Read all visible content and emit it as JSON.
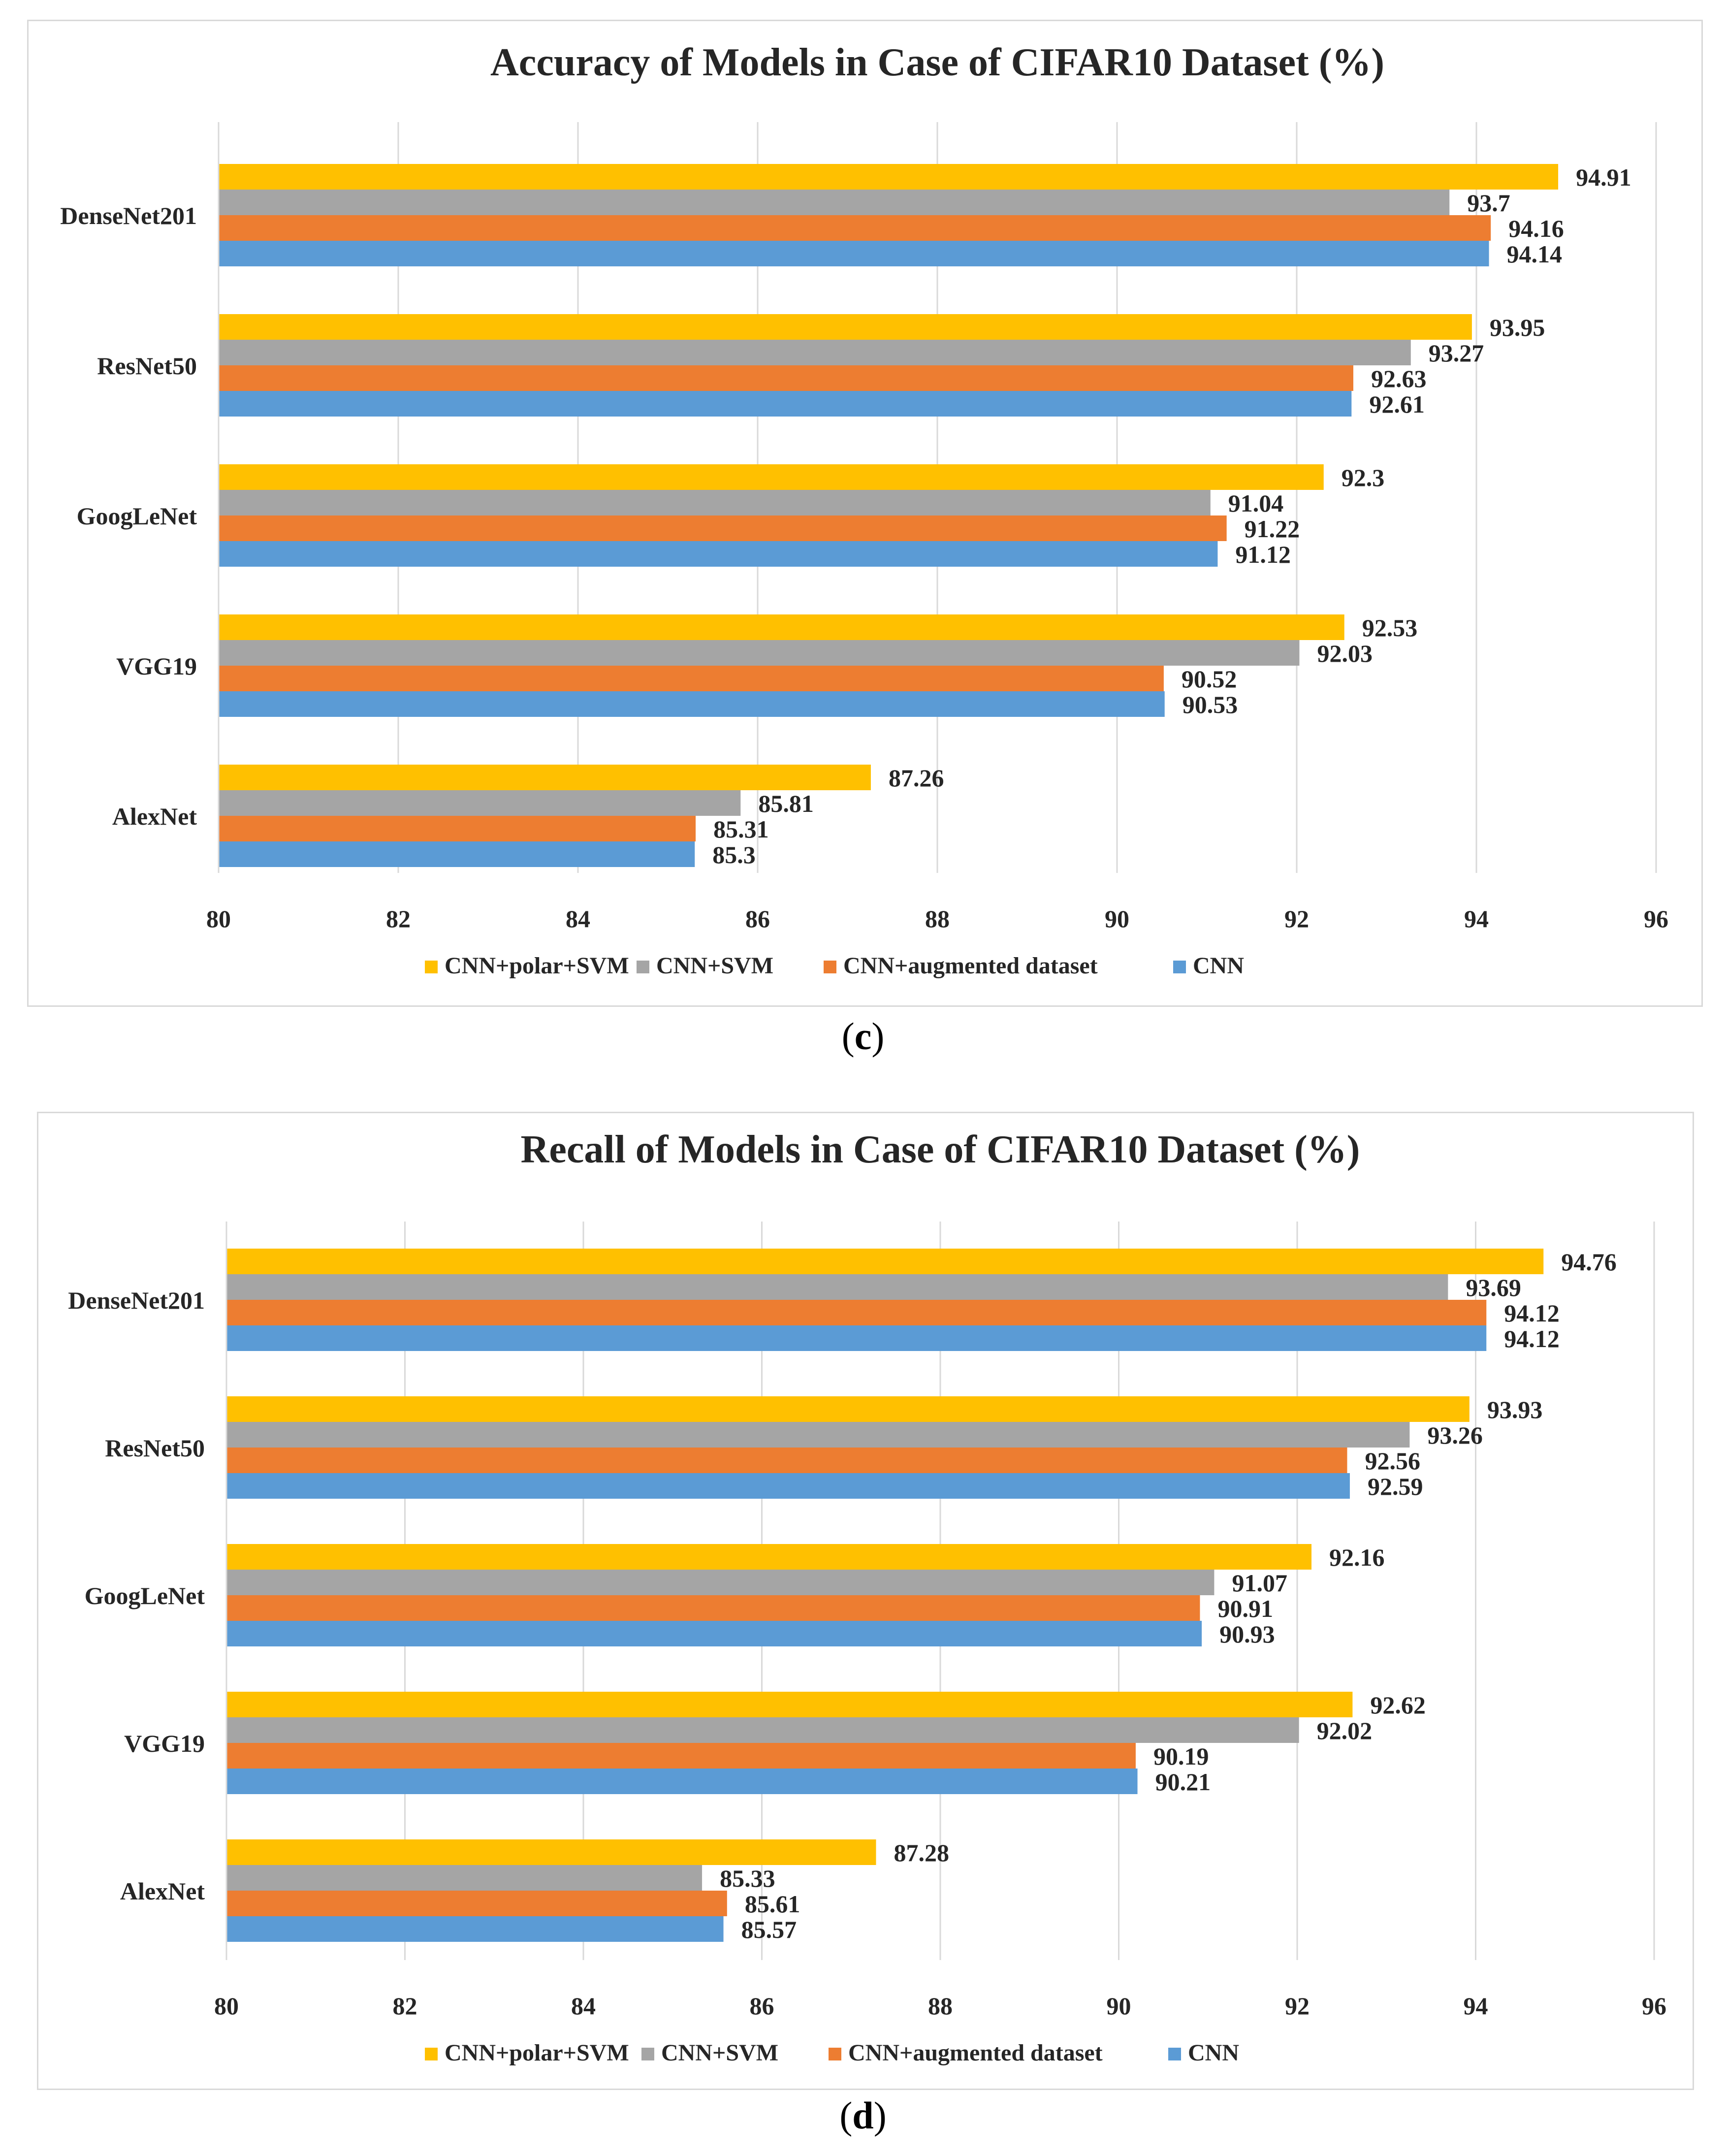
{
  "chart_data": [
    {
      "type": "bar",
      "orientation": "horizontal",
      "title": "Accuracy of Models in Case of CIFAR10 Dataset (%)",
      "caption": "c",
      "categories": [
        "DenseNet201",
        "ResNet50",
        "GoogLeNet",
        "VGG19",
        "AlexNet"
      ],
      "series": [
        {
          "name": "CNN+polar+SVM",
          "color": "#ffc000",
          "values": [
            94.91,
            93.95,
            92.3,
            92.53,
            87.26
          ]
        },
        {
          "name": "CNN+SVM",
          "color": "#a5a5a5",
          "values": [
            93.7,
            93.27,
            91.04,
            92.03,
            85.81
          ]
        },
        {
          "name": "CNN+augmented dataset",
          "color": "#ed7d31",
          "values": [
            94.16,
            92.63,
            91.22,
            90.52,
            85.31
          ]
        },
        {
          "name": "CNN",
          "color": "#5b9bd5",
          "values": [
            94.14,
            92.61,
            91.12,
            90.53,
            85.3
          ]
        }
      ],
      "xlim": [
        80,
        96
      ],
      "xticks": [
        80,
        82,
        84,
        86,
        88,
        90,
        92,
        94,
        96
      ],
      "legend": "bottom",
      "grid": true
    },
    {
      "type": "bar",
      "orientation": "horizontal",
      "title": "Recall of Models in Case of  CIFAR10 Dataset (%)",
      "caption": "d",
      "categories": [
        "DenseNet201",
        "ResNet50",
        "GoogLeNet",
        "VGG19",
        "AlexNet"
      ],
      "series": [
        {
          "name": "CNN+polar+SVM",
          "color": "#ffc000",
          "values": [
            94.76,
            93.93,
            92.16,
            92.62,
            87.28
          ]
        },
        {
          "name": "CNN+SVM",
          "color": "#a5a5a5",
          "values": [
            93.69,
            93.26,
            91.07,
            92.02,
            85.33
          ]
        },
        {
          "name": "CNN+augmented dataset",
          "color": "#ed7d31",
          "values": [
            94.12,
            92.56,
            90.91,
            90.19,
            85.61
          ]
        },
        {
          "name": "CNN",
          "color": "#5b9bd5",
          "values": [
            94.12,
            92.59,
            90.93,
            90.21,
            85.57
          ]
        }
      ],
      "xlim": [
        80,
        96
      ],
      "xticks": [
        80,
        82,
        84,
        86,
        88,
        90,
        92,
        94,
        96
      ],
      "legend": "bottom",
      "grid": true
    }
  ]
}
